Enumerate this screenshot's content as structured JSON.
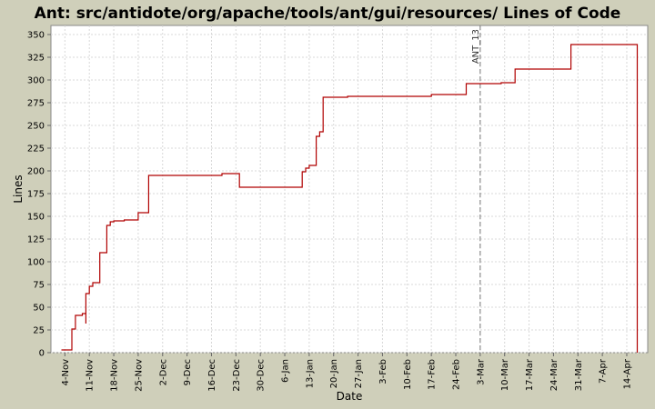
{
  "chart_data": {
    "type": "line",
    "title": "Ant: src/antidote/org/apache/tools/ant/gui/resources/ Lines of Code",
    "xlabel": "Date",
    "ylabel": "Lines",
    "ylim": [
      0,
      360
    ],
    "yticks": [
      0,
      25,
      50,
      75,
      100,
      125,
      150,
      175,
      200,
      225,
      250,
      275,
      300,
      325,
      350
    ],
    "xlim": [
      "2000-10-31",
      "2001-04-20"
    ],
    "xticks": [
      {
        "date": "2000-11-04",
        "label": "4-Nov"
      },
      {
        "date": "2000-11-11",
        "label": "11-Nov"
      },
      {
        "date": "2000-11-18",
        "label": "18-Nov"
      },
      {
        "date": "2000-11-25",
        "label": "25-Nov"
      },
      {
        "date": "2000-12-02",
        "label": "2-Dec"
      },
      {
        "date": "2000-12-09",
        "label": "9-Dec"
      },
      {
        "date": "2000-12-16",
        "label": "16-Dec"
      },
      {
        "date": "2000-12-23",
        "label": "23-Dec"
      },
      {
        "date": "2000-12-30",
        "label": "30-Dec"
      },
      {
        "date": "2001-01-06",
        "label": "6-Jan"
      },
      {
        "date": "2001-01-13",
        "label": "13-Jan"
      },
      {
        "date": "2001-01-20",
        "label": "20-Jan"
      },
      {
        "date": "2001-01-27",
        "label": "27-Jan"
      },
      {
        "date": "2001-02-03",
        "label": "3-Feb"
      },
      {
        "date": "2001-02-10",
        "label": "10-Feb"
      },
      {
        "date": "2001-02-17",
        "label": "17-Feb"
      },
      {
        "date": "2001-02-24",
        "label": "24-Feb"
      },
      {
        "date": "2001-03-03",
        "label": "3-Mar"
      },
      {
        "date": "2001-03-10",
        "label": "10-Mar"
      },
      {
        "date": "2001-03-17",
        "label": "17-Mar"
      },
      {
        "date": "2001-03-24",
        "label": "24-Mar"
      },
      {
        "date": "2001-03-31",
        "label": "31-Mar"
      },
      {
        "date": "2001-04-07",
        "label": "7-Apr"
      },
      {
        "date": "2001-04-14",
        "label": "14-Apr"
      }
    ],
    "grid": true,
    "step": true,
    "series": [
      {
        "name": "",
        "color": "#b00000",
        "points": [
          [
            "2000-11-03",
            3
          ],
          [
            "2000-11-06",
            3
          ],
          [
            "2000-11-06",
            26
          ],
          [
            "2000-11-07",
            26
          ],
          [
            "2000-11-07",
            41
          ],
          [
            "2000-11-09",
            41
          ],
          [
            "2000-11-09",
            43
          ],
          [
            "2000-11-10",
            43
          ],
          [
            "2000-11-10",
            32
          ],
          [
            "2000-11-10",
            65
          ],
          [
            "2000-11-11",
            65
          ],
          [
            "2000-11-11",
            73
          ],
          [
            "2000-11-12",
            73
          ],
          [
            "2000-11-12",
            77
          ],
          [
            "2000-11-14",
            77
          ],
          [
            "2000-11-14",
            110
          ],
          [
            "2000-11-16",
            110
          ],
          [
            "2000-11-16",
            140
          ],
          [
            "2000-11-17",
            140
          ],
          [
            "2000-11-17",
            144
          ],
          [
            "2000-11-18",
            144
          ],
          [
            "2000-11-18",
            145
          ],
          [
            "2000-11-21",
            145
          ],
          [
            "2000-11-21",
            146
          ],
          [
            "2000-11-25",
            146
          ],
          [
            "2000-11-25",
            154
          ],
          [
            "2000-11-28",
            154
          ],
          [
            "2000-11-28",
            195
          ],
          [
            "2000-12-19",
            195
          ],
          [
            "2000-12-19",
            197
          ],
          [
            "2000-12-24",
            197
          ],
          [
            "2000-12-24",
            182
          ],
          [
            "2001-01-11",
            182
          ],
          [
            "2001-01-11",
            199
          ],
          [
            "2001-01-12",
            199
          ],
          [
            "2001-01-12",
            203
          ],
          [
            "2001-01-13",
            203
          ],
          [
            "2001-01-13",
            206
          ],
          [
            "2001-01-15",
            206
          ],
          [
            "2001-01-15",
            238
          ],
          [
            "2001-01-16",
            238
          ],
          [
            "2001-01-16",
            243
          ],
          [
            "2001-01-17",
            243
          ],
          [
            "2001-01-17",
            281
          ],
          [
            "2001-01-24",
            281
          ],
          [
            "2001-01-24",
            282
          ],
          [
            "2001-02-17",
            282
          ],
          [
            "2001-02-17",
            284
          ],
          [
            "2001-02-27",
            284
          ],
          [
            "2001-02-27",
            296
          ],
          [
            "2001-03-09",
            296
          ],
          [
            "2001-03-09",
            297
          ],
          [
            "2001-03-13",
            297
          ],
          [
            "2001-03-13",
            312
          ],
          [
            "2001-03-29",
            312
          ],
          [
            "2001-03-29",
            339
          ],
          [
            "2001-04-17",
            339
          ],
          [
            "2001-04-17",
            0
          ]
        ]
      }
    ],
    "markers": [
      {
        "date": "2001-03-03",
        "label": "ANT_13"
      }
    ]
  }
}
